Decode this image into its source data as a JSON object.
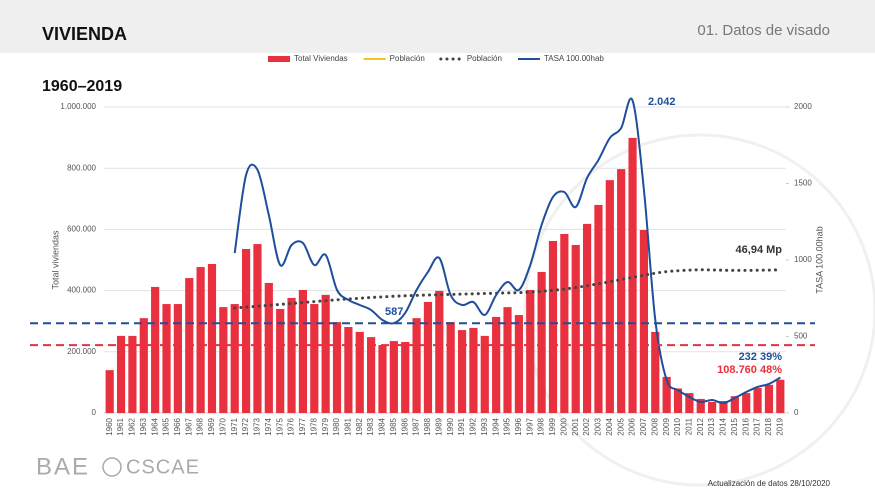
{
  "header": {
    "title": "VIVIENDA",
    "section": "01. Datos de visado"
  },
  "footer": {
    "brand": "BAE",
    "brand2": "CSCAE",
    "update": "Actualización de datos 28/10/2020"
  },
  "chart_data": {
    "type": "bar",
    "title": "1960–2019",
    "y_label": "Total viviendas",
    "y2_label": "TASA 100.00hab",
    "categories": [
      "1960",
      "1961",
      "1962",
      "1963",
      "1964",
      "1965",
      "1966",
      "1967",
      "1968",
      "1969",
      "1970",
      "1971",
      "1972",
      "1973",
      "1974",
      "1975",
      "1976",
      "1977",
      "1978",
      "1979",
      "1980",
      "1981",
      "1982",
      "1983",
      "1984",
      "1985",
      "1986",
      "1987",
      "1988",
      "1989",
      "1990",
      "1991",
      "1992",
      "1993",
      "1994",
      "1995",
      "1996",
      "1997",
      "1998",
      "1999",
      "2000",
      "2001",
      "2002",
      "2003",
      "2004",
      "2005",
      "2006",
      "2007",
      "2008",
      "2009",
      "2010",
      "2011",
      "2012",
      "2013",
      "2014",
      "2015",
      "2016",
      "2017",
      "2018",
      "2019"
    ],
    "series": [
      {
        "name": "Total Viviendas",
        "kind": "bar",
        "color": "#e8303f",
        "values": [
          140000,
          252000,
          252000,
          310000,
          412000,
          356000,
          356000,
          441000,
          477000,
          487000,
          346000,
          356000,
          536000,
          552000,
          425000,
          340000,
          376000,
          402000,
          356000,
          386000,
          297000,
          281000,
          265000,
          248000,
          222000,
          235000,
          232000,
          310000,
          363000,
          399000,
          297000,
          271000,
          278000,
          252000,
          314000,
          346000,
          320000,
          402000,
          461000,
          562000,
          585000,
          549000,
          618000,
          680000,
          761000,
          797000,
          899000,
          598000,
          265000,
          118000,
          80000,
          65000,
          46000,
          36000,
          39000,
          55000,
          65000,
          82000,
          92000,
          108760
        ]
      },
      {
        "name": "Población",
        "kind": "line",
        "color": "#f5c518",
        "axis": "y2",
        "values": [
          null,
          null,
          null,
          null,
          null,
          null,
          null,
          null,
          null,
          null,
          null,
          null,
          null,
          null,
          null,
          null,
          null,
          null,
          null,
          null,
          null,
          null,
          null,
          null,
          null,
          null,
          null,
          null,
          null,
          null,
          null,
          null,
          null,
          null,
          null,
          null,
          null,
          null,
          null,
          null,
          null,
          null,
          null,
          null,
          null,
          null,
          null,
          null,
          null,
          null,
          null,
          null,
          null,
          null,
          null,
          null,
          null,
          null,
          null,
          null
        ]
      },
      {
        "name": "Población",
        "kind": "line",
        "style": "dotted",
        "color": "#444444",
        "axis": "y2",
        "values": [
          null,
          null,
          null,
          null,
          null,
          null,
          null,
          null,
          null,
          null,
          null,
          686,
          692,
          698,
          704,
          710,
          716,
          722,
          728,
          734,
          740,
          745,
          750,
          755,
          759,
          763,
          766,
          769,
          771,
          773,
          775,
          777,
          779,
          781,
          783,
          785,
          787,
          790,
          795,
          802,
          810,
          820,
          832,
          845,
          858,
          872,
          886,
          900,
          914,
          924,
          930,
          934,
          936,
          935,
          933,
          932,
          932,
          933,
          934,
          936
        ]
      },
      {
        "name": "TASA 100.00hab",
        "kind": "line",
        "color": "#1f4e9a",
        "axis": "y2",
        "values": [
          null,
          null,
          null,
          null,
          null,
          null,
          null,
          null,
          null,
          null,
          null,
          1046,
          1556,
          1590,
          1294,
          967,
          1098,
          1111,
          967,
          1033,
          804,
          739,
          706,
          673,
          608,
          587,
          654,
          804,
          922,
          1013,
          771,
          706,
          725,
          641,
          771,
          856,
          804,
          967,
          1229,
          1412,
          1444,
          1346,
          1536,
          1654,
          1797,
          1863,
          2042,
          1458,
          608,
          216,
          150,
          105,
          72,
          85,
          65,
          98,
          137,
          170,
          190,
          232
        ]
      }
    ],
    "reference_lines": [
      {
        "value": 587,
        "axis": "y2",
        "color": "#1f4e9a"
      },
      {
        "value": 222000,
        "color": "#e8303f"
      }
    ],
    "annotations": [
      "2.042",
      "587",
      "46,94 Mp",
      "232 39%",
      "108.760 48%"
    ],
    "ylim": [
      0,
      1000000
    ],
    "yticks": [
      0,
      {
        "value": 200000,
        "label": "200.000"
      },
      {
        "value": 400000,
        "label": "400.000"
      },
      {
        "value": 600000,
        "label": "600.000"
      },
      {
        "value": 800000,
        "label": "800.000"
      },
      {
        "value": 1000000,
        "label": "1.000.000"
      }
    ],
    "y2lim": [
      0,
      2000
    ],
    "y2ticks": [
      0,
      500,
      1000,
      1500,
      2000
    ],
    "grid": true
  }
}
